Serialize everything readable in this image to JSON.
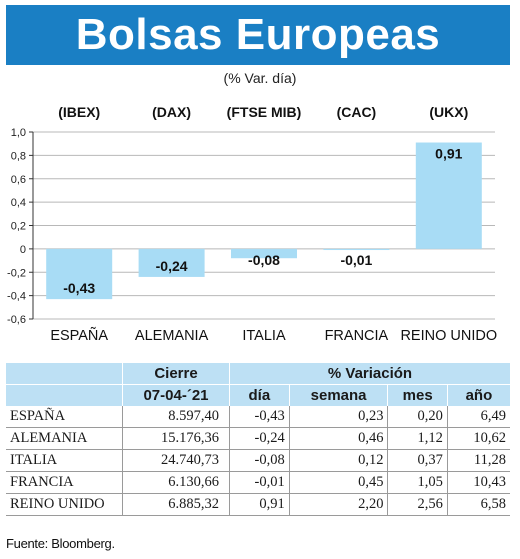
{
  "title": "Bolsas Europeas",
  "subtitle": "(% Var. día)",
  "chart_data": {
    "type": "bar",
    "indices": [
      "(IBEX)",
      "(DAX)",
      "(FTSE MIB)",
      "(CAC)",
      "(UKX)"
    ],
    "categories": [
      "ESPAÑA",
      "ALEMANIA",
      "ITALIA",
      "FRANCIA",
      "REINO UNIDO"
    ],
    "values": [
      -0.43,
      -0.24,
      -0.08,
      -0.01,
      0.91
    ],
    "value_labels": [
      "-0,43",
      "-0,24",
      "-0,08",
      "-0,01",
      "0,91"
    ],
    "yticks": [
      1.0,
      0.8,
      0.6,
      0.4,
      0.2,
      0,
      -0.2,
      -0.4,
      -0.6
    ],
    "ytick_labels": [
      "1,0",
      "0,8",
      "0,6",
      "0,4",
      "0,2",
      "0",
      "-0,2",
      "-0,4",
      "-0,6"
    ],
    "ylim": [
      -0.6,
      1.0
    ],
    "grid": true,
    "bar_color": "#a8dcf5"
  },
  "table": {
    "headers": {
      "cierre": "Cierre",
      "variacion": "% Variación",
      "date": "07-04-´21",
      "dia": "día",
      "semana": "semana",
      "mes": "mes",
      "ano": "año"
    },
    "rows": [
      {
        "country": "ESPAÑA",
        "cierre": "8.597,40",
        "dia": "-0,43",
        "semana": "0,23",
        "mes": "0,20",
        "ano": "6,49"
      },
      {
        "country": "ALEMANIA",
        "cierre": "15.176,36",
        "dia": "-0,24",
        "semana": "0,46",
        "mes": "1,12",
        "ano": "10,62"
      },
      {
        "country": "ITALIA",
        "cierre": "24.740,73",
        "dia": "-0,08",
        "semana": "0,12",
        "mes": "0,37",
        "ano": "11,28"
      },
      {
        "country": "FRANCIA",
        "cierre": "6.130,66",
        "dia": "-0,01",
        "semana": "0,45",
        "mes": "1,05",
        "ano": "10,43"
      },
      {
        "country": "REINO UNIDO",
        "cierre": "6.885,32",
        "dia": "0,91",
        "semana": "2,20",
        "mes": "2,56",
        "ano": "6,58"
      }
    ]
  },
  "source": "Fuente: Bloomberg.",
  "colors": {
    "banner": "#1a7fc4",
    "header_fill": "#bde0f4",
    "bar": "#a8dcf5"
  }
}
